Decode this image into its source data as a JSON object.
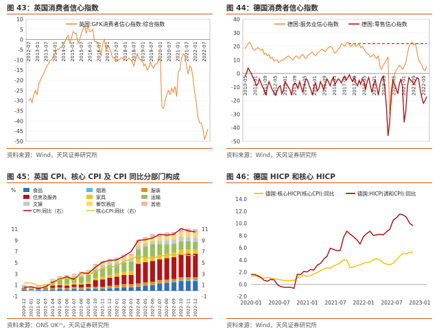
{
  "panels": {
    "p43": {
      "title": "图 43：英国消费者信心指数",
      "source": "资料来源：Wind，天风证券研究所"
    },
    "p44": {
      "title": "图 44：德国消费者信心指数",
      "source": "资料来源：Wind，天风证券研究所"
    },
    "p45": {
      "title": "图 45：英国 CPI、核心 CPI 及 CPI 同比分部门构成",
      "source": "资料来源：ONS UK⁽ᴵ⁾，天风证券研究所"
    },
    "p46": {
      "title": "图 46：德国 HICP 和核心 HICP",
      "source": "资料来源：Wind，天风证券研究所"
    }
  },
  "colors": {
    "orange": "#ef8a36",
    "darkred": "#b01414",
    "yellow": "#f5c400",
    "dashred": "#e02020",
    "grid": "#e4e4e4",
    "rule": "#c55a1a",
    "food": "#2e6fba",
    "alcohol": "#55b8e8",
    "clothing": "#f08a24",
    "housing": "#b11417",
    "furniture": "#f2c21b",
    "transport": "#9abe5a",
    "recreation": "#c8c8c8",
    "restaurants": "#ffd966",
    "other": "#f4b6a8",
    "cpiline": "#b01414",
    "coreline": "#e4c23b"
  },
  "chart_data": [
    {
      "type": "line",
      "id": "uk_gfk",
      "title": "英国消费者信心指数",
      "series": [
        {
          "name": "英国:GFK消费者信心指数:综合指数",
          "values": [
            -30,
            -29,
            -31,
            -27,
            -25,
            -27,
            -22,
            -20,
            -18,
            -17,
            -15,
            -13,
            -12,
            -10,
            -10,
            -8,
            -7,
            -5,
            -5,
            -4,
            -4,
            -2,
            -1,
            1,
            2,
            -2,
            1,
            4,
            3,
            3,
            -2,
            0,
            3,
            5,
            7,
            3,
            7,
            4,
            4,
            5,
            -1,
            -1,
            -2,
            -5,
            -8,
            -2,
            0,
            -5,
            -3,
            -4,
            -6,
            -9,
            -9,
            -11,
            -10,
            -10,
            -9,
            -9,
            -10,
            -10,
            -10,
            -9,
            -10,
            -11,
            -13,
            -10,
            -7,
            -9,
            -10,
            -10,
            -13,
            -12,
            -15,
            -14,
            -11,
            -13,
            -14,
            -12,
            -12,
            -9,
            -9,
            -33,
            -34,
            -30,
            -27,
            -25,
            -27,
            -24,
            -26,
            -23,
            -28,
            -16,
            -15,
            -9,
            -7,
            -8,
            -13,
            -17,
            -13,
            -14,
            -19,
            -26,
            -31,
            -38,
            -41,
            -41,
            -44,
            -49,
            -47,
            -44
          ]
        }
      ],
      "x_ticks": [
        "2012-07",
        "2013-01",
        "2013-07",
        "2014-01",
        "2014-07",
        "2015-01",
        "2015-07",
        "2016-01",
        "2016-07",
        "2017-01",
        "2017-07",
        "2018-01",
        "2018-07",
        "2019-01",
        "2019-07",
        "2020-01",
        "2020-07",
        "2021-01",
        "2021-07",
        "2022-01",
        "2022-07"
      ],
      "y_ticks": [
        10,
        5,
        0,
        -5,
        -10,
        -15,
        -20,
        -25,
        -30,
        -35,
        -40,
        -45,
        -50
      ],
      "ylim": [
        -50,
        10
      ]
    },
    {
      "type": "line",
      "id": "de_conf",
      "title": "德国消费者信心指数",
      "series": [
        {
          "name": "德国:服务业信心指数",
          "values": [
            18,
            20,
            22,
            23,
            21,
            18,
            17,
            18,
            19,
            18,
            17,
            18,
            14,
            15,
            13,
            14,
            11,
            12,
            9,
            10,
            10,
            8,
            9,
            10,
            10,
            11,
            12,
            13,
            12,
            11,
            10,
            12,
            13,
            12,
            11,
            13,
            14,
            12,
            11,
            13,
            14,
            15,
            16,
            14,
            13,
            15,
            16,
            17,
            18,
            17,
            16,
            18,
            19,
            20,
            19,
            17,
            15,
            16,
            18,
            19,
            22,
            21,
            20,
            22,
            23,
            21,
            20,
            21,
            22,
            20,
            21,
            22,
            19,
            20,
            18,
            16,
            15,
            14,
            12,
            13,
            14,
            12,
            11,
            13,
            5,
            3,
            6,
            8,
            10,
            12,
            -30,
            -22,
            -8,
            0,
            2,
            4,
            6,
            5,
            3,
            5,
            8,
            14,
            20,
            22,
            23,
            21,
            22,
            16,
            10,
            8,
            6,
            3,
            2,
            5
          ]
        },
        {
          "name": "德国:零售信心指数",
          "values": [
            -2,
            0,
            4,
            2,
            0,
            -3,
            -5,
            -9,
            -8,
            -4,
            -7,
            -10,
            -12,
            -16,
            -10,
            -6,
            -9,
            -12,
            -14,
            -16,
            -13,
            -10,
            -9,
            -15,
            -12,
            -6,
            -8,
            -10,
            -12,
            -16,
            -9,
            -7,
            -8,
            -11,
            -6,
            -10,
            -14,
            -8,
            -4,
            -5,
            -9,
            -12,
            -16,
            -10,
            -7,
            -13,
            -11,
            -6,
            -9,
            -12,
            -8,
            -4,
            -6,
            -9,
            -5,
            -3,
            -8,
            -6,
            -4,
            -5,
            -7,
            -4,
            -2,
            -5,
            -3,
            -1,
            -4,
            -6,
            -3,
            -7,
            -9,
            -5,
            -8,
            -4,
            -6,
            -12,
            -6,
            -3,
            -9,
            -14,
            -8,
            -5,
            -10,
            -16,
            -8,
            -4,
            -2,
            -10,
            -25,
            -46,
            -36,
            -14,
            -5,
            -8,
            -11,
            -15,
            -8,
            -4,
            -10,
            -36,
            -28,
            -10,
            -3,
            -5,
            -6,
            -8,
            -6,
            -3,
            -4,
            -12,
            -18,
            -22,
            -20,
            -17
          ]
        }
      ],
      "dashed_level": 22,
      "x_ticks": [
        "2010-05",
        "2011-01",
        "2011-09",
        "2012-05",
        "2013-01",
        "2013-09",
        "2014-05",
        "2015-01",
        "2015-09",
        "2016-05",
        "2017-01",
        "2017-09",
        "2018-05",
        "2019-01",
        "2019-09",
        "2020-05",
        "2021-01",
        "2021-09",
        "2022-05"
      ],
      "y_ticks": [
        40,
        30,
        20,
        10,
        0,
        -10,
        -20,
        -30,
        -40,
        -50
      ],
      "ylim": [
        -50,
        40
      ]
    },
    {
      "type": "bar",
      "id": "uk_cpi",
      "title": "英国 CPI、核心 CPI 及 CPI 同比分部门构成",
      "y_unit": "%",
      "categories": [
        "2020-12",
        "2021-01",
        "2021-02",
        "2021-03",
        "2021-04",
        "2021-05",
        "2021-06",
        "2021-07",
        "2021-08",
        "2021-09",
        "2021-10",
        "2021-11",
        "2021-12",
        "2022-01",
        "2022-02",
        "2022-03",
        "2022-04",
        "2022-05",
        "2022-06",
        "2022-07",
        "2022-08",
        "2022-09",
        "2022-10",
        "2022-11",
        "2022-12"
      ],
      "stack_series": [
        {
          "name": "食品",
          "color": "food",
          "values": [
            0.2,
            0.0,
            0.1,
            0.1,
            0.2,
            0.3,
            0.2,
            0.3,
            0.2,
            0.3,
            0.3,
            0.3,
            0.4,
            0.5,
            0.6,
            0.6,
            0.7,
            0.9,
            1.0,
            1.3,
            1.4,
            1.5,
            1.7,
            1.7,
            1.7
          ]
        },
        {
          "name": "烟酒",
          "color": "alcohol",
          "values": [
            0.1,
            0.1,
            0.1,
            0.1,
            0.1,
            0.1,
            0.1,
            0.1,
            0.1,
            0.1,
            0.1,
            0.1,
            0.1,
            0.1,
            0.1,
            0.1,
            0.1,
            0.1,
            0.1,
            0.1,
            0.1,
            0.1,
            0.2,
            0.2,
            0.2
          ]
        },
        {
          "name": "服装",
          "color": "clothing",
          "values": [
            0.1,
            0.1,
            0.1,
            0.1,
            0.2,
            0.2,
            0.2,
            0.3,
            0.3,
            0.3,
            0.3,
            0.3,
            0.4,
            0.4,
            0.5,
            0.5,
            0.5,
            0.5,
            0.5,
            0.5,
            0.5,
            0.5,
            0.5,
            0.5,
            0.5
          ]
        },
        {
          "name": "住房及服务",
          "color": "housing",
          "values": [
            0.1,
            0.1,
            0.1,
            0.1,
            0.4,
            0.4,
            0.4,
            0.4,
            0.5,
            0.5,
            1.2,
            1.3,
            1.4,
            1.5,
            1.6,
            1.6,
            3.5,
            3.6,
            3.7,
            3.7,
            3.8,
            3.9,
            4.1,
            4.2,
            4.2
          ]
        },
        {
          "name": "家具",
          "color": "furniture",
          "values": [
            0.1,
            0.1,
            0.1,
            0.1,
            0.2,
            0.2,
            0.3,
            0.3,
            0.3,
            0.4,
            0.4,
            0.5,
            0.5,
            0.6,
            0.6,
            0.7,
            0.8,
            0.8,
            0.8,
            0.8,
            0.8,
            0.8,
            0.8,
            0.8,
            0.8
          ]
        },
        {
          "name": "运输",
          "color": "transport",
          "values": [
            0.1,
            0.0,
            0.1,
            0.3,
            0.6,
            1.0,
            1.0,
            1.0,
            1.1,
            1.2,
            1.4,
            1.6,
            1.7,
            1.6,
            1.6,
            1.7,
            1.8,
            2.0,
            2.2,
            1.9,
            1.7,
            1.6,
            1.5,
            1.4,
            1.3
          ]
        },
        {
          "name": "文娱",
          "color": "recreation",
          "values": [
            0.2,
            0.2,
            0.1,
            0.1,
            0.1,
            0.1,
            0.2,
            0.2,
            0.3,
            0.3,
            0.4,
            0.5,
            0.5,
            0.5,
            0.5,
            0.5,
            0.6,
            0.6,
            0.6,
            0.6,
            0.7,
            0.7,
            0.8,
            0.8,
            0.8
          ]
        },
        {
          "name": "餐饮酒店",
          "color": "restaurants",
          "values": [
            0.1,
            0.1,
            0.1,
            0.1,
            0.1,
            0.1,
            0.2,
            0.2,
            0.4,
            0.4,
            0.4,
            0.4,
            0.4,
            0.4,
            0.5,
            0.5,
            0.6,
            0.6,
            0.6,
            0.6,
            0.7,
            0.7,
            0.8,
            0.8,
            0.8
          ]
        },
        {
          "name": "其他",
          "color": "other",
          "values": [
            0.1,
            0.1,
            0.1,
            0.1,
            0.2,
            0.2,
            0.2,
            0.2,
            0.2,
            0.2,
            0.3,
            0.3,
            0.3,
            0.3,
            0.4,
            0.4,
            0.5,
            0.5,
            0.6,
            0.6,
            0.7,
            0.7,
            0.7,
            0.7,
            0.7
          ]
        }
      ],
      "line_series": [
        {
          "name": "CPI:同比（右）",
          "color": "cpiline",
          "values": [
            0.6,
            0.7,
            0.4,
            0.7,
            1.5,
            2.1,
            2.5,
            2.0,
            3.2,
            3.1,
            4.2,
            5.1,
            5.4,
            5.5,
            6.2,
            7.0,
            9.0,
            9.1,
            9.4,
            10.1,
            9.9,
            10.1,
            11.1,
            10.7,
            10.5
          ]
        },
        {
          "name": "核心CPI:同比（右）",
          "color": "coreline",
          "values": [
            1.4,
            1.4,
            0.9,
            1.1,
            1.3,
            2.0,
            2.3,
            1.8,
            3.1,
            2.9,
            3.4,
            4.0,
            4.2,
            4.4,
            5.2,
            5.7,
            6.2,
            5.9,
            5.8,
            6.2,
            6.3,
            6.5,
            6.5,
            6.3,
            6.3
          ]
        }
      ],
      "y_left_ticks": [
        11,
        9,
        7,
        5,
        3,
        1,
        -1
      ],
      "y_right_ticks": [
        11,
        9,
        7,
        5,
        3,
        1,
        -1
      ],
      "ylim": [
        -1,
        11
      ]
    },
    {
      "type": "line",
      "id": "de_hicp",
      "title": "德国 HICP 和核心 HICP",
      "series": [
        {
          "name": "德国:核心HICP(核心CPI):同比",
          "color": "yellow",
          "values": [
            1.3,
            1.4,
            1.2,
            1.0,
            1.0,
            1.1,
            1.0,
            0.9,
            0.8,
            0.7,
            0.6,
            0.6,
            0.6,
            0.6,
            1.1,
            1.2,
            1.5,
            1.3,
            1.4,
            1.7,
            1.9,
            2.2,
            2.5,
            2.7,
            2.6,
            3.0,
            3.2,
            3.5,
            4.0,
            3.9,
            2.7,
            2.8,
            3.0,
            3.2,
            3.4,
            3.6,
            3.6,
            4.0,
            4.2,
            4.0,
            3.5,
            3.3,
            3.2,
            3.4,
            4.0,
            4.6,
            5.0,
            5.0,
            5.2,
            5.3
          ]
        },
        {
          "name": "德国:HICP(调和CPI):同比",
          "color": "darkred",
          "values": [
            1.6,
            1.6,
            1.4,
            1.1,
            0.6,
            0.5,
            0.8,
            0.7,
            -0.1,
            -0.4,
            -0.5,
            -0.5,
            -0.5,
            -0.7,
            1.6,
            1.6,
            2.1,
            2.0,
            2.4,
            2.3,
            3.1,
            3.4,
            4.1,
            4.6,
            5.9,
            5.7,
            5.5,
            5.5,
            7.7,
            8.7,
            8.2,
            7.8,
            7.3,
            6.6,
            7.8,
            8.3,
            8.7,
            8.0,
            8.1,
            8.2,
            8.1,
            8.6,
            9.0,
            10.5,
            10.9,
            11.5,
            11.4,
            11.0,
            10.0,
            9.6
          ]
        }
      ],
      "x_ticks": [
        "2020-01",
        "2020-07",
        "2021-01",
        "2021-07",
        "2022-01",
        "2022-07",
        "2023-01"
      ],
      "y_ticks": [
        "14.0",
        "12.0",
        "10.0",
        "8.0",
        "6.0",
        "4.0",
        "2.0",
        "0.0",
        "-2.0"
      ],
      "ylim": [
        -2,
        14
      ]
    }
  ]
}
